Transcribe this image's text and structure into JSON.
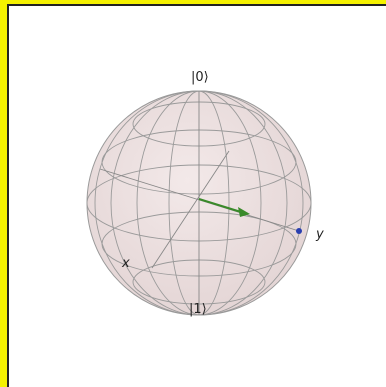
{
  "bloch_sphere": {
    "labels": {
      "top": "|0⟩",
      "bottom": "|1⟩",
      "x": "x",
      "y": "y"
    },
    "colors": {
      "frame": "#f5f100",
      "sphere_fill": "#eadcdc",
      "wire": "#8a8a8a",
      "state_vector": "#3a8a2a",
      "point": "#2a3fb0"
    },
    "state_vector_name": "state-vector-arrow",
    "point_name": "y-axis-point"
  }
}
